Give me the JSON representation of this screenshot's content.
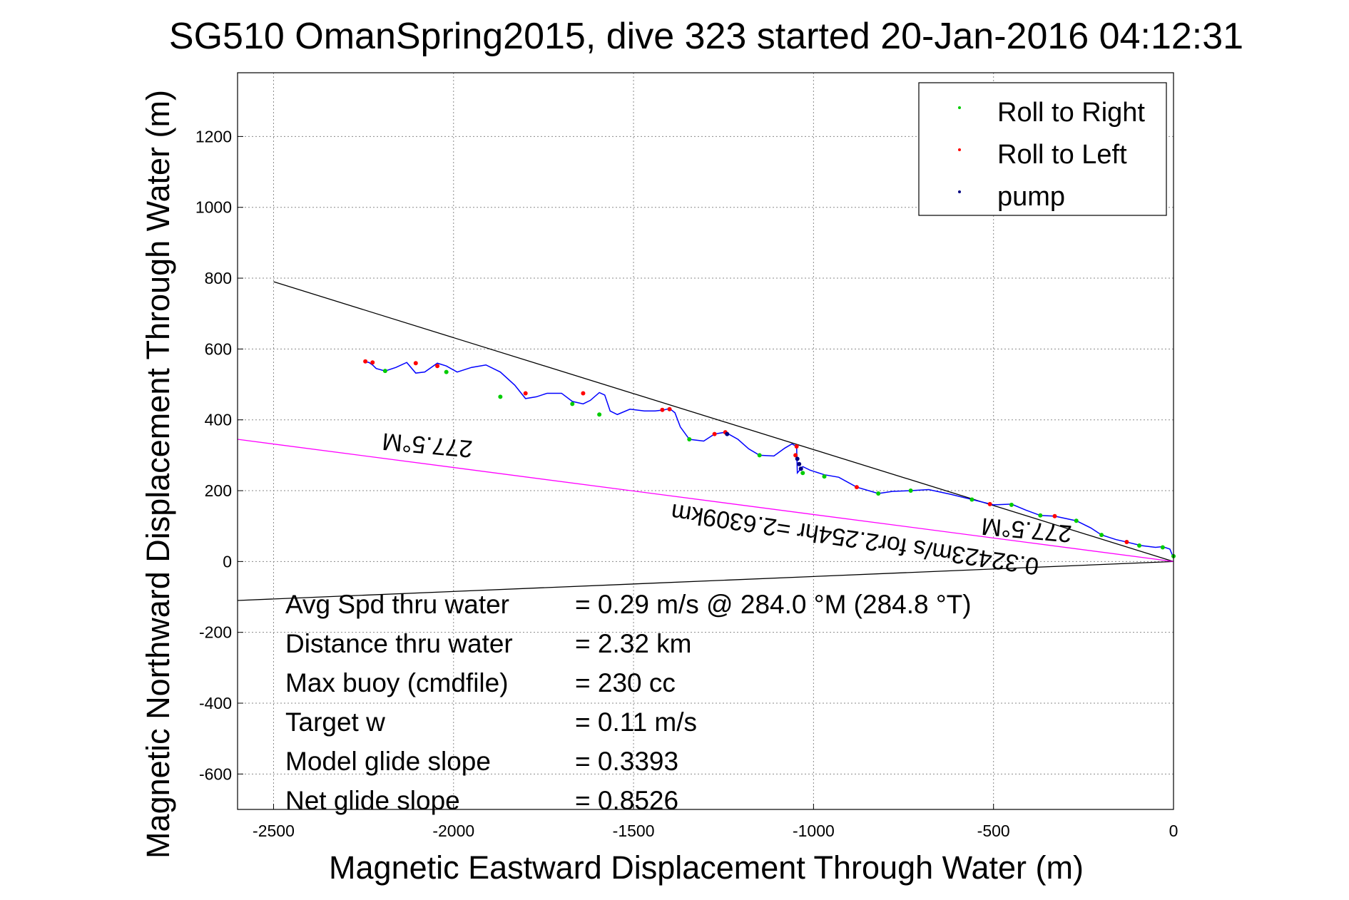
{
  "chart_data": {
    "type": "line",
    "title": "SG510 OmanSpring2015, dive 323 started 20-Jan-2016 04:12:31",
    "xlabel": "Magnetic Eastward Displacement Through Water (m)",
    "ylabel": "Magnetic Northward Displacement Through Water (m)",
    "xlim": [
      -2600,
      0
    ],
    "ylim": [
      -700,
      1380
    ],
    "xticks": [
      -2500,
      -2000,
      -1500,
      -1000,
      -500,
      0
    ],
    "yticks": [
      -600,
      -400,
      -200,
      0,
      200,
      400,
      600,
      800,
      1000,
      1200
    ],
    "grid": true,
    "legend_position": "top-right",
    "legend": [
      {
        "label": "Roll to Right",
        "color": "#00cc00"
      },
      {
        "label": "Roll to Left",
        "color": "#ff0000"
      },
      {
        "label": "pump",
        "color": "#000080"
      }
    ],
    "track": {
      "color": "#0000ff",
      "x": [
        0,
        -10,
        -30,
        -50,
        -90,
        -130,
        -160,
        -200,
        -230,
        -270,
        -330,
        -370,
        -410,
        -450,
        -500,
        -560,
        -620,
        -680,
        -730,
        -780,
        -820,
        -880,
        -930,
        -970,
        -1010,
        -1030,
        -1045,
        -1047,
        -1060,
        -1080,
        -1110,
        -1150,
        -1180,
        -1210,
        -1245,
        -1275,
        -1305,
        -1345,
        -1370,
        -1385,
        -1400,
        -1415,
        -1440,
        -1470,
        -1510,
        -1545,
        -1565,
        -1580,
        -1595,
        -1620,
        -1640,
        -1670,
        -1700,
        -1740,
        -1770,
        -1800,
        -1830,
        -1870,
        -1910,
        -1950,
        -1990,
        -2020,
        -2045,
        -2080,
        -2105,
        -2130,
        -2160,
        -2190,
        -2215,
        -2225,
        -2235,
        -2250
      ],
      "y": [
        10,
        35,
        42,
        40,
        45,
        55,
        62,
        75,
        95,
        115,
        128,
        130,
        145,
        162,
        160,
        175,
        190,
        203,
        200,
        198,
        192,
        210,
        238,
        245,
        258,
        268,
        250,
        325,
        332,
        320,
        298,
        300,
        318,
        345,
        365,
        360,
        340,
        345,
        380,
        420,
        432,
        428,
        425,
        425,
        430,
        415,
        425,
        470,
        477,
        455,
        445,
        452,
        475,
        475,
        465,
        460,
        498,
        535,
        555,
        548,
        535,
        552,
        560,
        535,
        532,
        562,
        548,
        538,
        545,
        555,
        562,
        565
      ]
    },
    "roll_right_points": {
      "x": [
        0,
        -30,
        -95,
        -200,
        -270,
        -370,
        -450,
        -560,
        -730,
        -820,
        -970,
        -1030,
        -1150,
        -1345,
        -1595,
        -1670,
        -1870,
        -2020,
        -2190
      ],
      "y": [
        15,
        40,
        45,
        75,
        115,
        130,
        160,
        175,
        200,
        192,
        240,
        250,
        300,
        345,
        415,
        445,
        465,
        535,
        538
      ]
    },
    "roll_left_points": {
      "x": [
        -130,
        -330,
        -510,
        -880,
        -1047,
        -1050,
        -1245,
        -1275,
        -1400,
        -1420,
        -1640,
        -1800,
        -2045,
        -2105,
        -2225,
        -2245
      ],
      "y": [
        55,
        128,
        162,
        210,
        325,
        300,
        365,
        360,
        430,
        428,
        475,
        475,
        552,
        560,
        562,
        565
      ]
    },
    "pump_points": {
      "x": [
        -1040,
        -1035,
        -1045,
        -1240
      ],
      "y": [
        275,
        262,
        290,
        360
      ]
    },
    "reference_lines": [
      {
        "color": "#000000",
        "x": [
          0,
          -2500
        ],
        "y": [
          0,
          790
        ]
      },
      {
        "color": "#000000",
        "x": [
          0,
          -2600
        ],
        "y": [
          0,
          -110
        ]
      },
      {
        "color": "#ff00ff",
        "x": [
          0,
          -2600
        ],
        "y": [
          0,
          345
        ]
      }
    ],
    "annotations": [
      {
        "text": "277.5°M"
      },
      {
        "text": "277.5°M"
      },
      {
        "text": "0.32423m/s for2.254hr =2.6309km"
      }
    ],
    "stats": [
      {
        "label": "Avg Spd thru water",
        "value": "=  0.29 m/s @ 284.0 °M (284.8 °T)"
      },
      {
        "label": "Distance thru water",
        "value": "=  2.32 km"
      },
      {
        "label": "Max buoy (cmdfile)",
        "value": "= 230 cc"
      },
      {
        "label": "Target w",
        "value": "= 0.11 m/s"
      },
      {
        "label": "Model glide slope",
        "value": "= 0.3393"
      },
      {
        "label": "Net glide slope",
        "value": "= 0.8526"
      }
    ]
  }
}
